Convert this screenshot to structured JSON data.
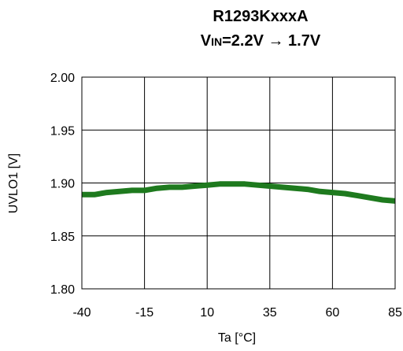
{
  "chart_data": {
    "type": "line",
    "title": "R1293KxxxA",
    "subtitle": {
      "prefix": "V",
      "sub": "IN",
      "rest": "=2.2V → 1.7V"
    },
    "xlabel": "Ta [°C]",
    "ylabel": "UVLO1 [V]",
    "xlim": [
      -40,
      85
    ],
    "ylim": [
      1.8,
      2.0
    ],
    "xticks": [
      -40,
      -15,
      10,
      35,
      60,
      85
    ],
    "xtick_labels": [
      "-40",
      "-15",
      "10",
      "35",
      "60",
      "85"
    ],
    "yticks": [
      1.8,
      1.85,
      1.9,
      1.95,
      2.0
    ],
    "ytick_labels": [
      "1.80",
      "1.85",
      "1.90",
      "1.95",
      "2.00"
    ],
    "grid": true,
    "legend": "none",
    "series": [
      {
        "color": "#1e7a1e",
        "x": [
          -40,
          -35,
          -30,
          -25,
          -20,
          -15,
          -10,
          -5,
          0,
          5,
          10,
          15,
          20,
          25,
          30,
          35,
          40,
          45,
          50,
          55,
          60,
          65,
          70,
          75,
          80,
          85
        ],
        "y": [
          1.889,
          1.889,
          1.891,
          1.892,
          1.893,
          1.893,
          1.895,
          1.896,
          1.896,
          1.897,
          1.898,
          1.899,
          1.899,
          1.899,
          1.898,
          1.897,
          1.896,
          1.895,
          1.894,
          1.892,
          1.891,
          1.89,
          1.888,
          1.886,
          1.884,
          1.883
        ]
      }
    ]
  }
}
